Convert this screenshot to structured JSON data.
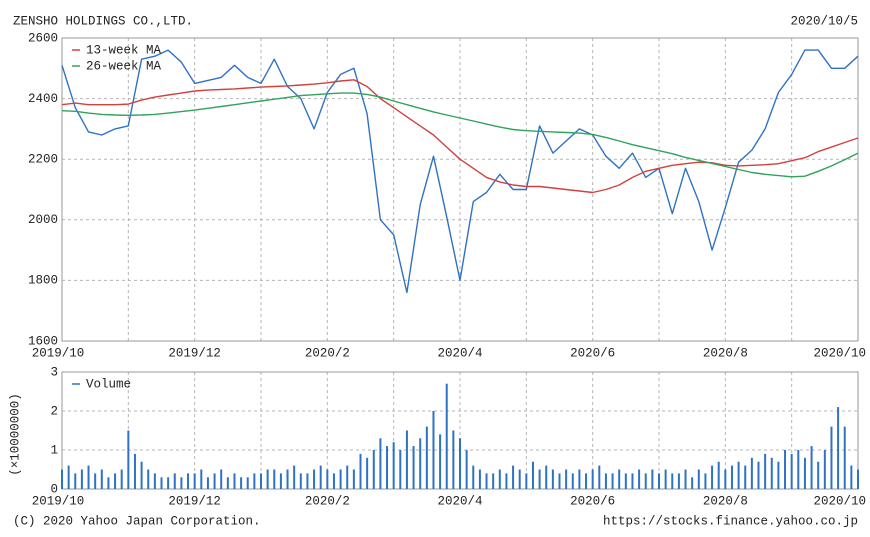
{
  "header": {
    "title": "ZENSHO HOLDINGS CO.,LTD.",
    "date": "2020/10/5"
  },
  "footer": {
    "copyright": "(C) 2020 Yahoo Japan Corporation.",
    "url": "https://stocks.finance.yahoo.co.jp"
  },
  "chart_data": [
    {
      "type": "line",
      "x": [
        0,
        0.2,
        0.4,
        0.6,
        0.8,
        1,
        1.2,
        1.4,
        1.6,
        1.8,
        2,
        2.2,
        2.4,
        2.6,
        2.8,
        3,
        3.2,
        3.4,
        3.6,
        3.8,
        4,
        4.2,
        4.4,
        4.6,
        4.8,
        5,
        5.2,
        5.4,
        5.6,
        5.8,
        6,
        6.2,
        6.4,
        6.6,
        6.8,
        7,
        7.2,
        7.4,
        7.6,
        7.8,
        8,
        8.2,
        8.4,
        8.6,
        8.8,
        9,
        9.2,
        9.4,
        9.6,
        9.8,
        10,
        10.2,
        10.4,
        10.6,
        10.8,
        11,
        11.2,
        11.4,
        11.6,
        11.8,
        12
      ],
      "series": [
        {
          "color": "#2f72c4",
          "values": [
            2510,
            2370,
            2290,
            2280,
            2300,
            2310,
            2530,
            2540,
            2560,
            2520,
            2450,
            2460,
            2470,
            2510,
            2470,
            2450,
            2530,
            2440,
            2400,
            2300,
            2420,
            2480,
            2500,
            2350,
            2000,
            1950,
            1760,
            2050,
            2210,
            2010,
            1800,
            2060,
            2090,
            2150,
            2100,
            2100,
            2310,
            2220,
            2260,
            2300,
            2280,
            2210,
            2170,
            2220,
            2140,
            2170,
            2020,
            2170,
            2060,
            1900,
            2040,
            2190,
            2230,
            2300,
            2420,
            2480,
            2560,
            2560,
            2500,
            2500,
            2540
          ]
        },
        {
          "name": "13-week MA",
          "color": "#d2403f",
          "values": [
            2380,
            2385,
            2380,
            2380,
            2380,
            2382,
            2395,
            2405,
            2412,
            2418,
            2425,
            2428,
            2430,
            2432,
            2435,
            2438,
            2440,
            2442,
            2445,
            2448,
            2452,
            2458,
            2462,
            2440,
            2400,
            2370,
            2340,
            2310,
            2280,
            2240,
            2200,
            2170,
            2140,
            2125,
            2115,
            2110,
            2110,
            2105,
            2100,
            2095,
            2090,
            2100,
            2115,
            2140,
            2160,
            2170,
            2180,
            2185,
            2190,
            2188,
            2180,
            2178,
            2180,
            2182,
            2185,
            2195,
            2205,
            2225,
            2240,
            2255,
            2270
          ]
        },
        {
          "name": "26-week MA",
          "color": "#2fa35c",
          "values": [
            2360,
            2358,
            2352,
            2348,
            2346,
            2345,
            2346,
            2348,
            2352,
            2357,
            2362,
            2368,
            2374,
            2380,
            2386,
            2392,
            2398,
            2404,
            2410,
            2413,
            2416,
            2418,
            2418,
            2414,
            2405,
            2392,
            2380,
            2368,
            2356,
            2346,
            2336,
            2326,
            2316,
            2306,
            2298,
            2294,
            2292,
            2290,
            2288,
            2286,
            2282,
            2272,
            2260,
            2248,
            2238,
            2228,
            2218,
            2206,
            2196,
            2186,
            2176,
            2166,
            2156,
            2150,
            2146,
            2142,
            2144,
            2160,
            2178,
            2198,
            2220
          ]
        }
      ],
      "xlim": [
        0,
        12
      ],
      "xticks": [
        {
          "value": 0,
          "label": "2019/10"
        },
        {
          "value": 2,
          "label": "2019/12"
        },
        {
          "value": 4,
          "label": "2020/2"
        },
        {
          "value": 6,
          "label": "2020/4"
        },
        {
          "value": 8,
          "label": "2020/6"
        },
        {
          "value": 10,
          "label": "2020/8"
        },
        {
          "value": 12,
          "label": "2020/10"
        }
      ],
      "xminor": [
        1,
        3,
        5,
        7,
        9,
        11
      ],
      "ylim": [
        1600,
        2600
      ],
      "yticks": [
        1600,
        1800,
        2000,
        2200,
        2400,
        2600
      ],
      "grid": true,
      "legend": "top-left"
    },
    {
      "type": "bar",
      "ylabel": "(×10000000)",
      "x": [
        0,
        0.1,
        0.2,
        0.3,
        0.4,
        0.5,
        0.6,
        0.7,
        0.8,
        0.9,
        1,
        1.1,
        1.2,
        1.3,
        1.4,
        1.5,
        1.6,
        1.7,
        1.8,
        1.9,
        2,
        2.1,
        2.2,
        2.3,
        2.4,
        2.5,
        2.6,
        2.7,
        2.8,
        2.9,
        3,
        3.1,
        3.2,
        3.3,
        3.4,
        3.5,
        3.6,
        3.7,
        3.8,
        3.9,
        4,
        4.1,
        4.2,
        4.3,
        4.4,
        4.5,
        4.6,
        4.7,
        4.8,
        4.9,
        5,
        5.1,
        5.2,
        5.3,
        5.4,
        5.5,
        5.6,
        5.7,
        5.8,
        5.9,
        6,
        6.1,
        6.2,
        6.3,
        6.4,
        6.5,
        6.6,
        6.7,
        6.8,
        6.9,
        7,
        7.1,
        7.2,
        7.3,
        7.4,
        7.5,
        7.6,
        7.7,
        7.8,
        7.9,
        8,
        8.1,
        8.2,
        8.3,
        8.4,
        8.5,
        8.6,
        8.7,
        8.8,
        8.9,
        9,
        9.1,
        9.2,
        9.3,
        9.4,
        9.5,
        9.6,
        9.7,
        9.8,
        9.9,
        10,
        10.1,
        10.2,
        10.3,
        10.4,
        10.5,
        10.6,
        10.7,
        10.8,
        10.9,
        11,
        11.1,
        11.2,
        11.3,
        11.4,
        11.5,
        11.6,
        11.7,
        11.8,
        11.9,
        12
      ],
      "series": [
        {
          "name": "Volume",
          "color": "#2f72c4",
          "values": [
            0.5,
            0.6,
            0.4,
            0.5,
            0.6,
            0.4,
            0.5,
            0.3,
            0.4,
            0.5,
            1.5,
            0.9,
            0.7,
            0.5,
            0.4,
            0.3,
            0.3,
            0.4,
            0.3,
            0.4,
            0.4,
            0.5,
            0.3,
            0.4,
            0.5,
            0.3,
            0.4,
            0.3,
            0.3,
            0.4,
            0.4,
            0.5,
            0.5,
            0.4,
            0.5,
            0.6,
            0.4,
            0.4,
            0.5,
            0.6,
            0.5,
            0.4,
            0.5,
            0.6,
            0.5,
            0.9,
            0.8,
            1.0,
            1.3,
            1.1,
            1.2,
            1.0,
            1.5,
            1.1,
            1.3,
            1.6,
            2.0,
            1.4,
            2.7,
            1.5,
            1.3,
            1.0,
            0.6,
            0.5,
            0.4,
            0.4,
            0.5,
            0.4,
            0.6,
            0.5,
            0.4,
            0.7,
            0.5,
            0.6,
            0.5,
            0.4,
            0.5,
            0.4,
            0.5,
            0.4,
            0.5,
            0.6,
            0.4,
            0.4,
            0.5,
            0.4,
            0.4,
            0.5,
            0.4,
            0.5,
            0.4,
            0.5,
            0.4,
            0.4,
            0.5,
            0.3,
            0.5,
            0.4,
            0.6,
            0.7,
            0.5,
            0.6,
            0.7,
            0.6,
            0.8,
            0.7,
            0.9,
            0.8,
            0.7,
            1.0,
            0.9,
            1.0,
            0.8,
            1.1,
            0.7,
            1.0,
            1.6,
            2.1,
            1.6,
            0.6,
            0.5
          ]
        }
      ],
      "xlim": [
        0,
        12
      ],
      "xticks": [
        {
          "value": 0,
          "label": "2019/10"
        },
        {
          "value": 2,
          "label": "2019/12"
        },
        {
          "value": 4,
          "label": "2020/2"
        },
        {
          "value": 6,
          "label": "2020/4"
        },
        {
          "value": 8,
          "label": "2020/6"
        },
        {
          "value": 10,
          "label": "2020/8"
        },
        {
          "value": 12,
          "label": "2020/10"
        }
      ],
      "xminor": [
        1,
        3,
        5,
        7,
        9,
        11
      ],
      "ylim": [
        0,
        3
      ],
      "yticks": [
        0,
        1,
        2,
        3
      ],
      "grid": true,
      "legend": "top-left"
    }
  ]
}
